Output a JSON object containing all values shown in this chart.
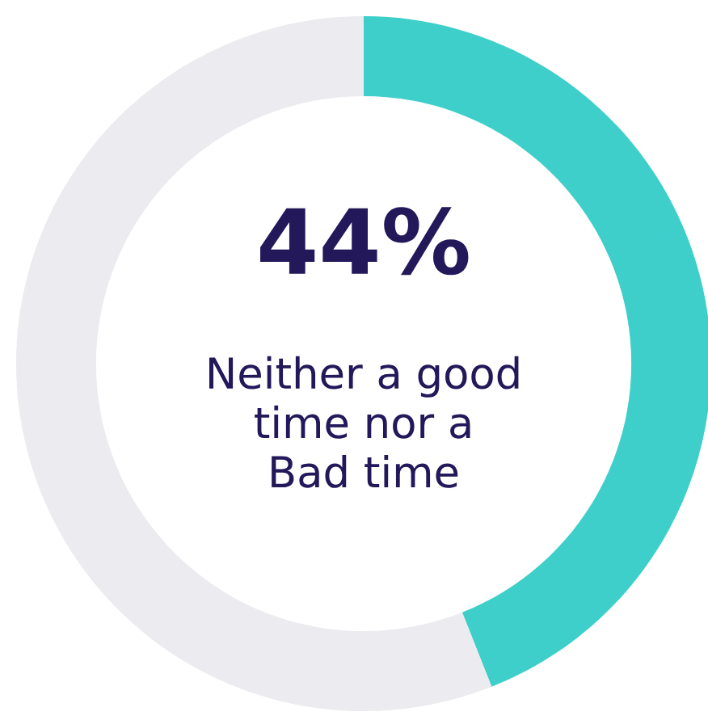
{
  "chart_data": {
    "type": "donut",
    "categories": [
      null,
      null
    ],
    "values": [
      44,
      56
    ],
    "colors": [
      "#3ecfca",
      "#ebebf0"
    ],
    "annotations": [
      "44%",
      "Neither a good\ntime nor a\nBad time"
    ]
  }
}
